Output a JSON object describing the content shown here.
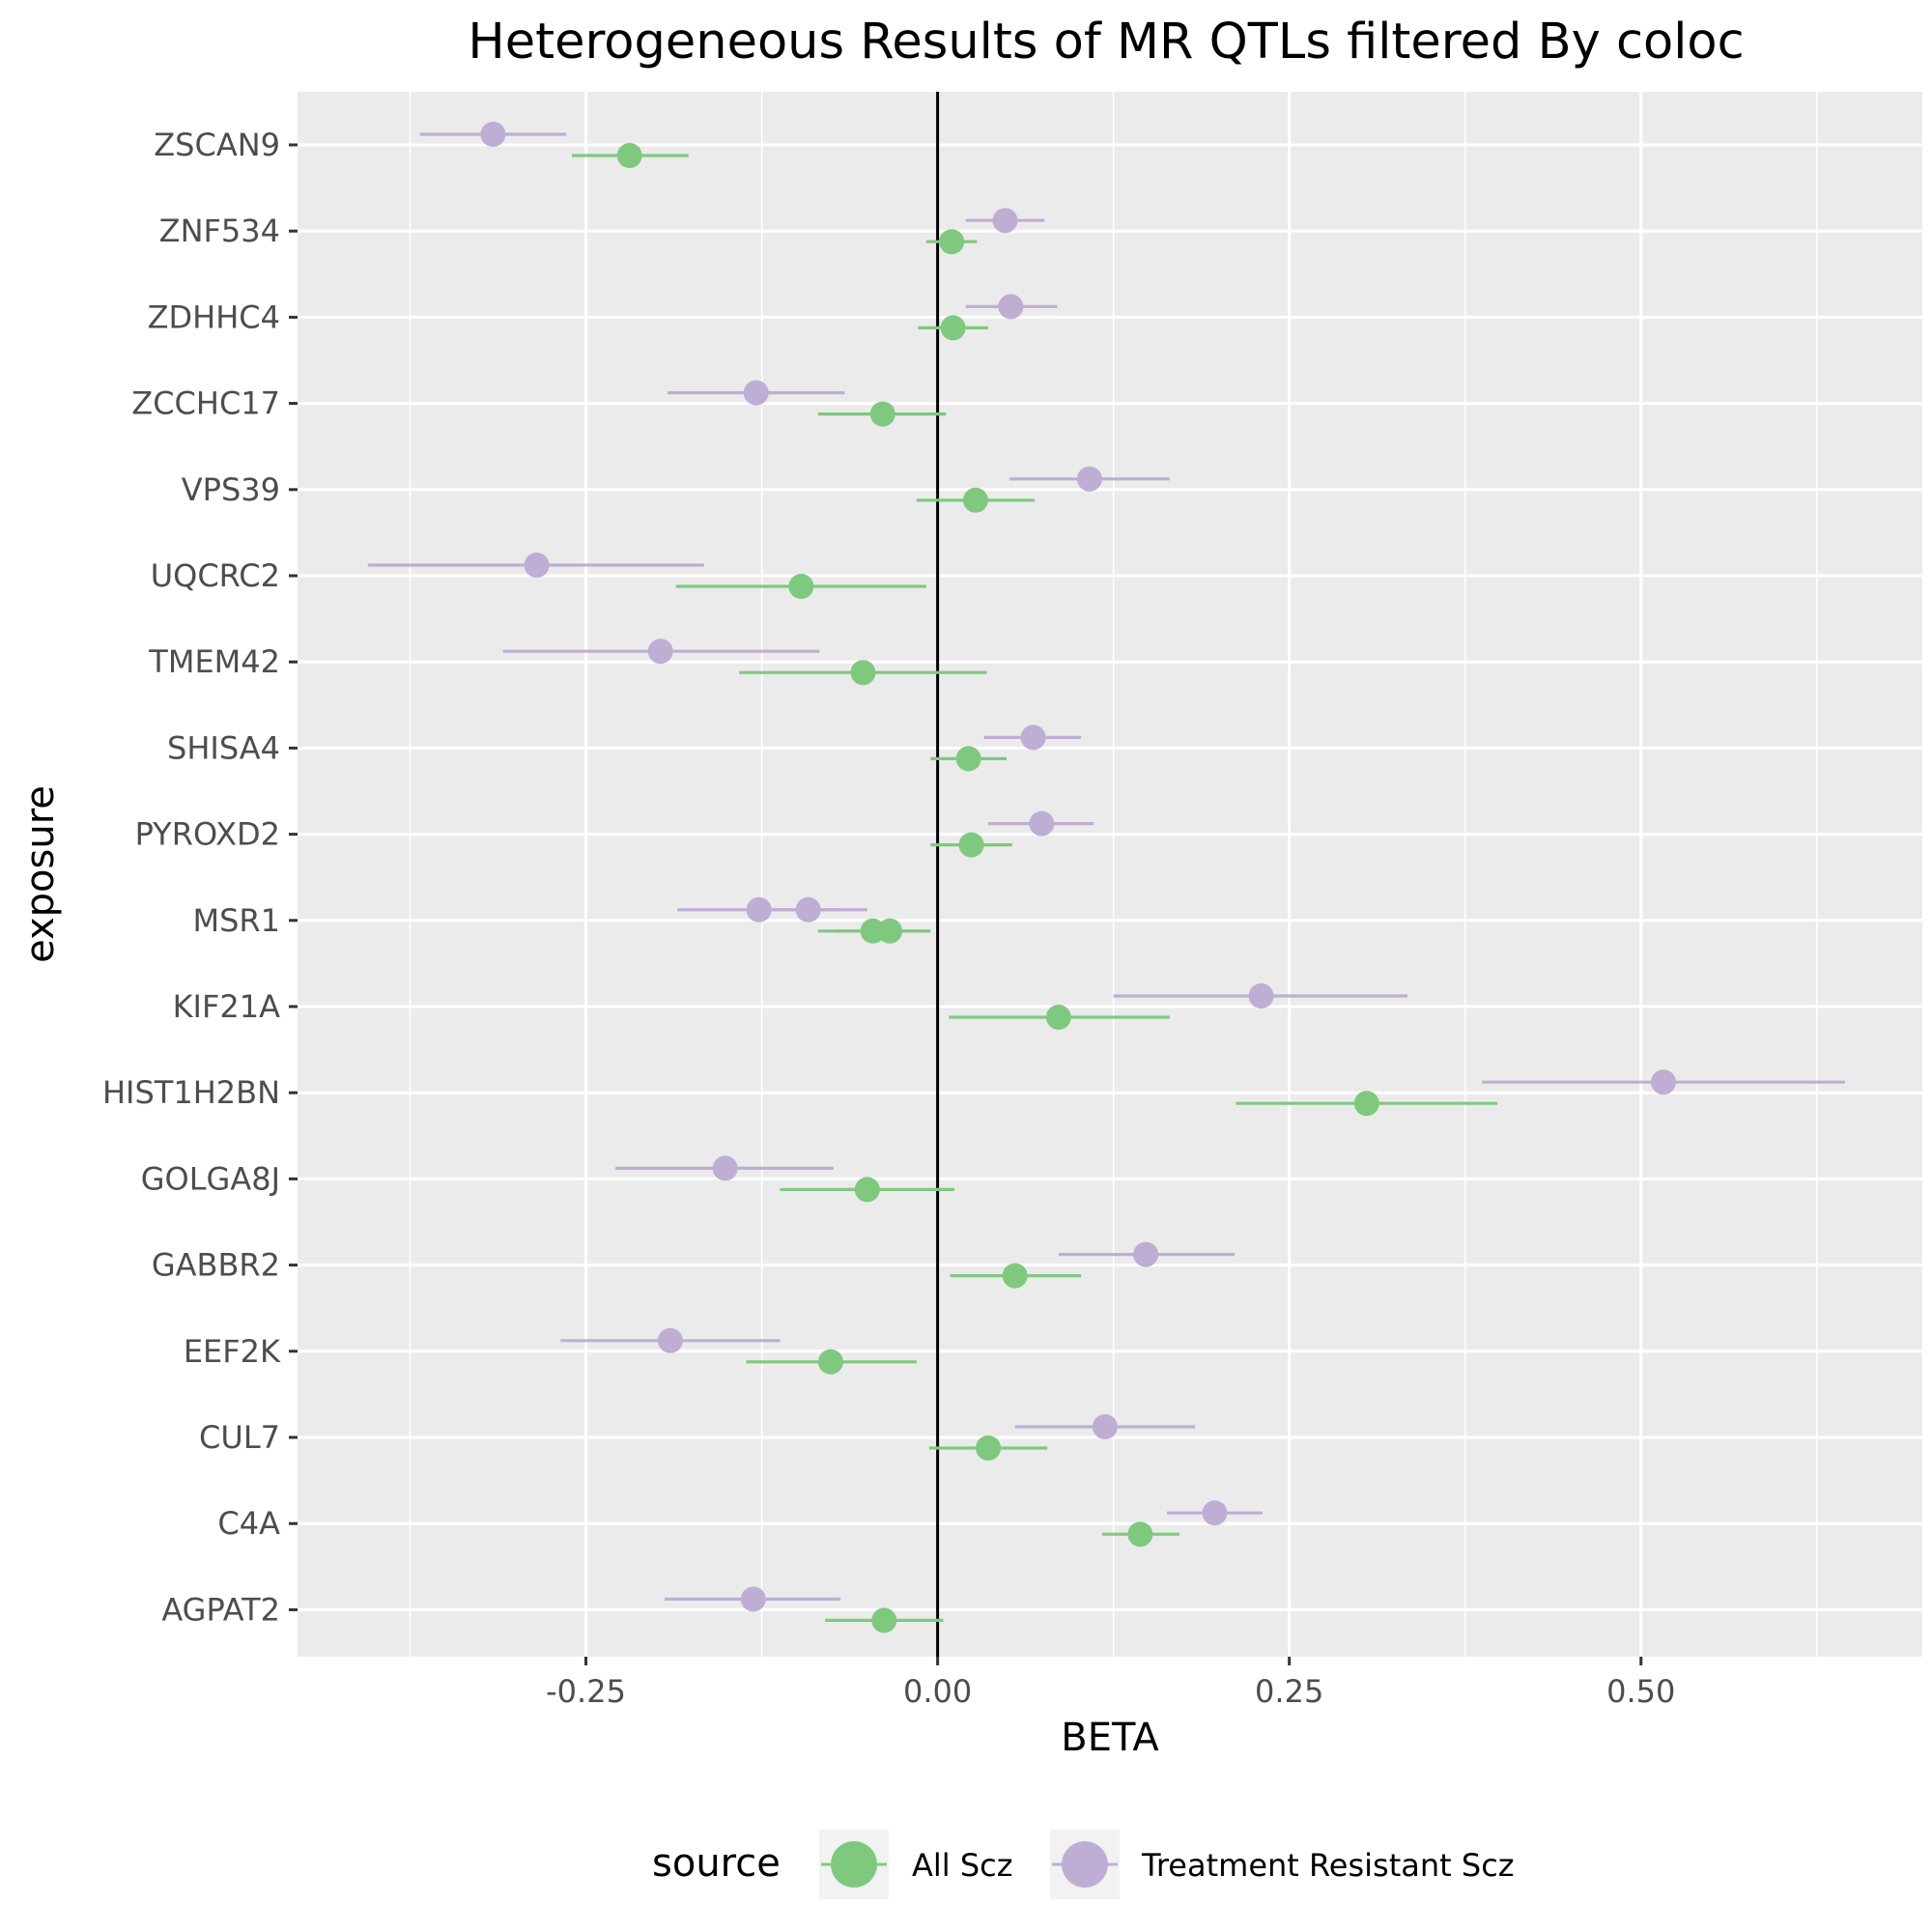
{
  "chart_data": {
    "type": "scatter",
    "subtype": "forest-plot",
    "title": "Heterogeneous Results of MR QTLs filtered By coloc",
    "xlabel": "BETA",
    "ylabel": "exposure",
    "xlim": [
      -0.455,
      0.7
    ],
    "x_ticks": [
      "-0.25",
      "0.00",
      "0.25",
      "0.50"
    ],
    "x_tick_values": [
      -0.25,
      0,
      0.25,
      0.5
    ],
    "reference_line": 0,
    "grid": true,
    "legend": {
      "title": "source",
      "position": "bottom"
    },
    "categories": [
      "ZSCAN9",
      "ZNF534",
      "ZDHHC4",
      "ZCCHC17",
      "VPS39",
      "UQCRC2",
      "TMEM42",
      "SHISA4",
      "PYROXD2",
      "MSR1",
      "KIF21A",
      "HIST1H2BN",
      "GOLGA8J",
      "GABBR2",
      "EEF2K",
      "CUL7",
      "C4A",
      "AGPAT2"
    ],
    "series": [
      {
        "name": "All Scz",
        "color": "#7fc97f",
        "points": [
          {
            "y": "ZSCAN9",
            "beta": -0.219,
            "lo": -0.26,
            "hi": -0.177
          },
          {
            "y": "ZNF534",
            "beta": 0.01,
            "lo": -0.008,
            "hi": 0.028
          },
          {
            "y": "ZDHHC4",
            "beta": 0.011,
            "lo": -0.014,
            "hi": 0.036
          },
          {
            "y": "ZCCHC17",
            "beta": -0.039,
            "lo": -0.085,
            "hi": 0.006
          },
          {
            "y": "VPS39",
            "beta": 0.027,
            "lo": -0.015,
            "hi": 0.069
          },
          {
            "y": "UQCRC2",
            "beta": -0.097,
            "lo": -0.186,
            "hi": -0.008
          },
          {
            "y": "TMEM42",
            "beta": -0.053,
            "lo": -0.141,
            "hi": 0.035
          },
          {
            "y": "SHISA4",
            "beta": 0.022,
            "lo": -0.005,
            "hi": 0.049
          },
          {
            "y": "PYROXD2",
            "beta": 0.024,
            "lo": -0.005,
            "hi": 0.053
          },
          {
            "y": "MSR1",
            "beta": -0.046,
            "lo": -0.085,
            "hi": -0.007
          },
          {
            "y": "MSR1",
            "beta": -0.034,
            "lo": -0.073,
            "hi": -0.005
          },
          {
            "y": "KIF21A",
            "beta": 0.086,
            "lo": 0.008,
            "hi": 0.165
          },
          {
            "y": "HIST1H2BN",
            "beta": 0.305,
            "lo": 0.212,
            "hi": 0.398
          },
          {
            "y": "GOLGA8J",
            "beta": -0.05,
            "lo": -0.112,
            "hi": 0.012
          },
          {
            "y": "GABBR2",
            "beta": 0.055,
            "lo": 0.009,
            "hi": 0.102
          },
          {
            "y": "EEF2K",
            "beta": -0.076,
            "lo": -0.136,
            "hi": -0.015
          },
          {
            "y": "CUL7",
            "beta": 0.036,
            "lo": -0.006,
            "hi": 0.078
          },
          {
            "y": "C4A",
            "beta": 0.144,
            "lo": 0.117,
            "hi": 0.172
          },
          {
            "y": "AGPAT2",
            "beta": -0.038,
            "lo": -0.08,
            "hi": 0.004
          }
        ]
      },
      {
        "name": "Treatment Resistant Scz",
        "color": "#beaed4",
        "points": [
          {
            "y": "ZSCAN9",
            "beta": -0.316,
            "lo": -0.368,
            "hi": -0.264
          },
          {
            "y": "ZNF534",
            "beta": 0.048,
            "lo": 0.02,
            "hi": 0.076
          },
          {
            "y": "ZDHHC4",
            "beta": 0.052,
            "lo": 0.02,
            "hi": 0.085
          },
          {
            "y": "ZCCHC17",
            "beta": -0.129,
            "lo": -0.192,
            "hi": -0.066
          },
          {
            "y": "VPS39",
            "beta": 0.108,
            "lo": 0.051,
            "hi": 0.165
          },
          {
            "y": "UQCRC2",
            "beta": -0.285,
            "lo": -0.405,
            "hi": -0.166
          },
          {
            "y": "TMEM42",
            "beta": -0.197,
            "lo": -0.309,
            "hi": -0.084
          },
          {
            "y": "SHISA4",
            "beta": 0.068,
            "lo": 0.033,
            "hi": 0.102
          },
          {
            "y": "PYROXD2",
            "beta": 0.074,
            "lo": 0.036,
            "hi": 0.111
          },
          {
            "y": "MSR1",
            "beta": -0.127,
            "lo": -0.185,
            "hi": -0.069
          },
          {
            "y": "MSR1",
            "beta": -0.092,
            "lo": -0.134,
            "hi": -0.05
          },
          {
            "y": "KIF21A",
            "beta": 0.23,
            "lo": 0.125,
            "hi": 0.334
          },
          {
            "y": "HIST1H2BN",
            "beta": 0.516,
            "lo": 0.387,
            "hi": 0.645
          },
          {
            "y": "GOLGA8J",
            "beta": -0.151,
            "lo": -0.229,
            "hi": -0.074
          },
          {
            "y": "GABBR2",
            "beta": 0.148,
            "lo": 0.086,
            "hi": 0.211
          },
          {
            "y": "EEF2K",
            "beta": -0.19,
            "lo": -0.268,
            "hi": -0.112
          },
          {
            "y": "CUL7",
            "beta": 0.119,
            "lo": 0.055,
            "hi": 0.183
          },
          {
            "y": "C4A",
            "beta": 0.197,
            "lo": 0.163,
            "hi": 0.231
          },
          {
            "y": "AGPAT2",
            "beta": -0.131,
            "lo": -0.194,
            "hi": -0.069
          }
        ]
      }
    ]
  }
}
